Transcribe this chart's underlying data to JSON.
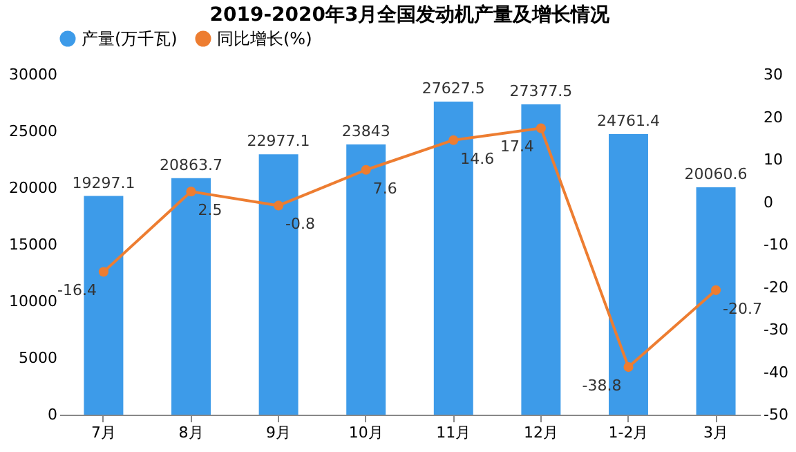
{
  "chart_data": {
    "type": "bar",
    "title": "2019-2020年3月全国发动机产量及增长情况",
    "categories": [
      "7月",
      "8月",
      "9月",
      "10月",
      "11月",
      "12月",
      "1-2月",
      "3月"
    ],
    "series": [
      {
        "name": "产量(万千瓦)",
        "color": "#3d9be9",
        "values": [
          19297.1,
          20863.7,
          22977.1,
          23843,
          27627.5,
          27377.5,
          24761.4,
          20060.6
        ]
      },
      {
        "name": "同比增长(%)",
        "type": "line",
        "axis": "y2",
        "color": "#ed7d31",
        "values": [
          -16.4,
          2.5,
          -0.8,
          7.6,
          14.6,
          17.4,
          -38.8,
          -20.7
        ]
      }
    ],
    "ylim": [
      0,
      30000
    ],
    "yticks": [
      0,
      5000,
      10000,
      15000,
      20000,
      25000,
      30000
    ],
    "y2lim": [
      -50,
      30
    ],
    "y2ticks": [
      -50,
      -40,
      -30,
      -20,
      -10,
      0,
      10,
      20,
      30
    ],
    "data_labels": true,
    "legend": "top",
    "marker": "circle",
    "grid": false
  }
}
